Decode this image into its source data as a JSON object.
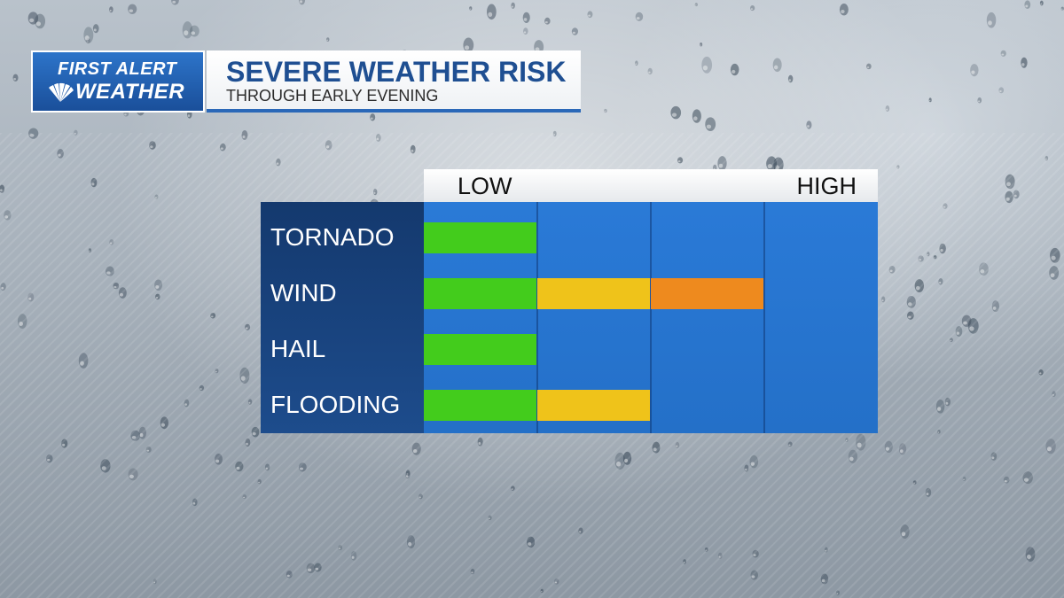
{
  "header": {
    "logo_line1": "FIRST ALERT",
    "logo_line2": "WEATHER",
    "logo_icon": "peacock-icon"
  },
  "chart_data": {
    "type": "bar",
    "title": "SEVERE WEATHER RISK",
    "subtitle": "THROUGH EARLY EVENING",
    "scale": {
      "low_label": "LOW",
      "high_label": "HIGH",
      "levels": 4
    },
    "categories": [
      "TORNADO",
      "WIND",
      "HAIL",
      "FLOODING"
    ],
    "values": [
      1,
      3,
      1,
      2
    ],
    "level_colors": [
      "#43cc1c",
      "#efc31a",
      "#ee8a1e",
      "#d83a1e"
    ],
    "grid": true
  }
}
